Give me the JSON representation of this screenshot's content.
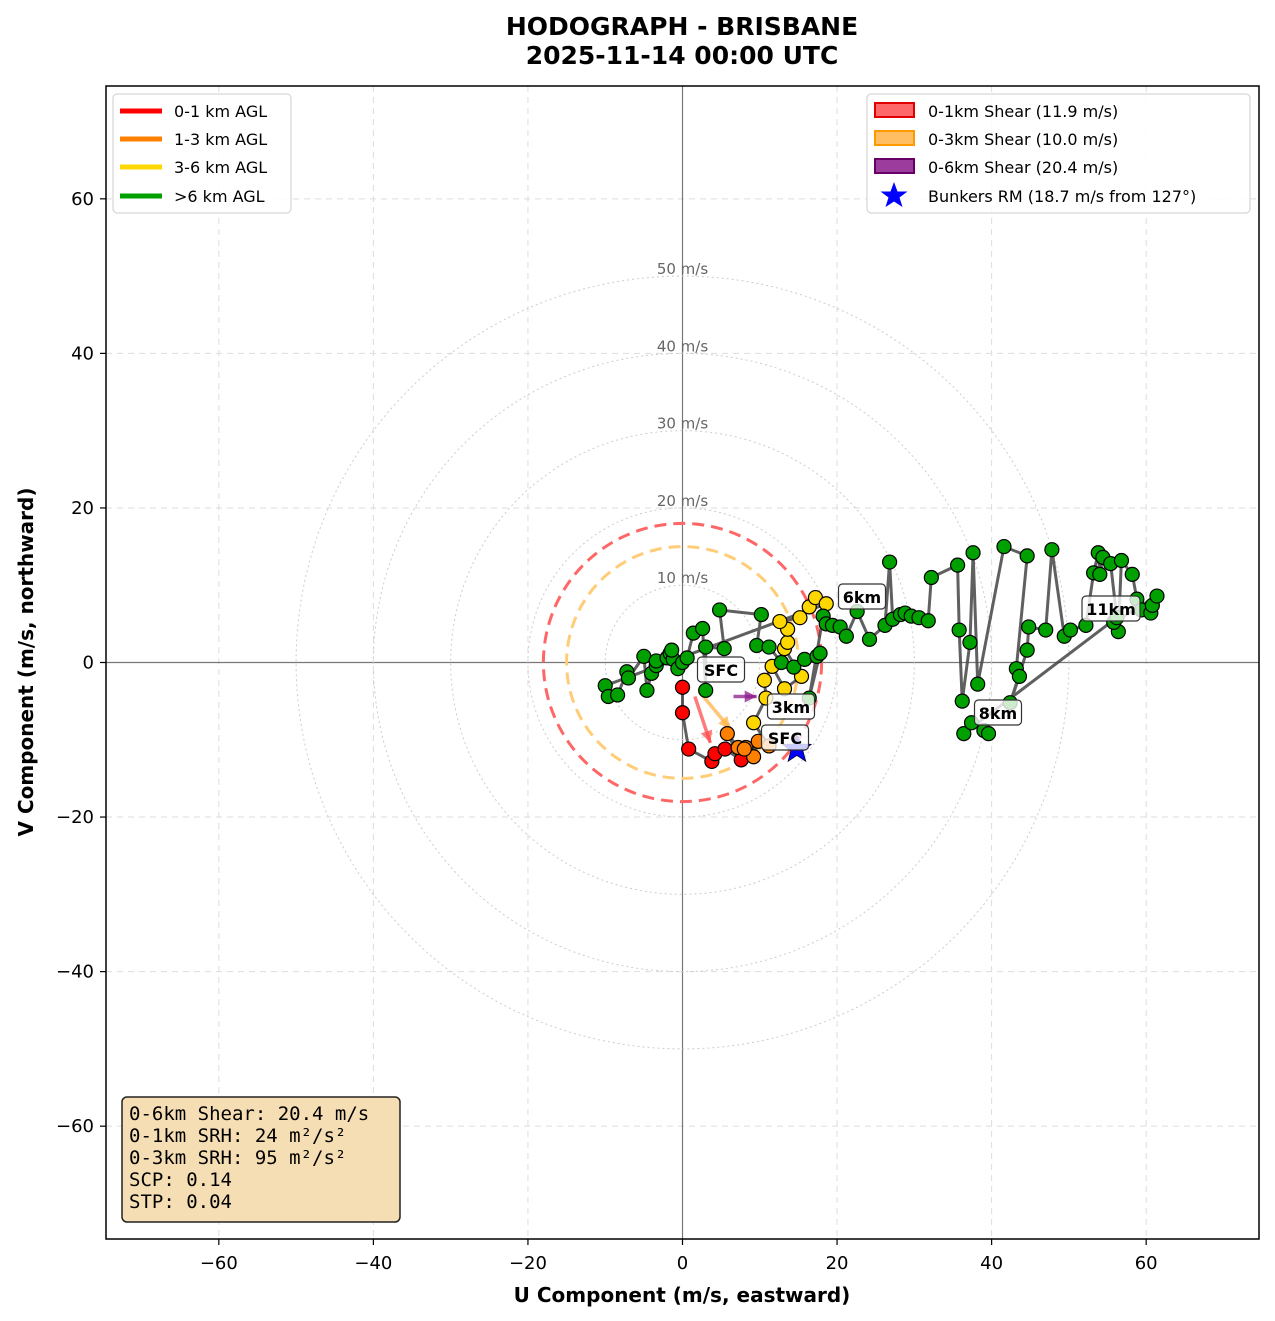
{
  "chart_data": {
    "type": "scatter",
    "title": "HODOGRAPH - BRISBANE",
    "subtitle": "2025-11-14 00:00 UTC",
    "xlabel": "U Component (m/s, eastward)",
    "ylabel": "V Component (m/s, northward)",
    "xlim": [
      -74.6,
      74.6
    ],
    "ylim": [
      -74.6,
      74.6
    ],
    "xticks": [
      -60,
      -40,
      -20,
      0,
      20,
      40,
      60
    ],
    "yticks": [
      -60,
      -40,
      -20,
      0,
      20,
      40,
      60
    ],
    "grid": true,
    "rings": [
      10,
      20,
      30,
      40,
      50
    ],
    "ring_labels": [
      "10 m/s",
      "20 m/s",
      "30 m/s",
      "40 m/s",
      "50 m/s"
    ],
    "shear_circles": [
      {
        "radius": 18,
        "color": "#ff6666"
      },
      {
        "radius": 15,
        "color": "#ffcc77"
      }
    ],
    "colors": {
      "layer_0_1": "#ff0000",
      "layer_1_3": "#ff8000",
      "layer_3_6": "#ffd700",
      "layer_above_6": "#00a000",
      "path": "#444444",
      "bunkers": "#0000ff",
      "shear_0_1": "#ff4d4d",
      "shear_0_3": "#ffb347",
      "shear_0_6": "#8b1a8b"
    },
    "series": [
      {
        "name": "0-1 km AGL",
        "color": "#ff0000",
        "points": [
          [
            0,
            -3.2
          ],
          [
            0,
            -6.5
          ],
          [
            0.8,
            -11.2
          ],
          [
            3.8,
            -12.8
          ],
          [
            4.2,
            -11.8
          ],
          [
            5.5,
            -11.2
          ],
          [
            7.6,
            -12.6
          ]
        ]
      },
      {
        "name": "1-3 km AGL",
        "color": "#ff8000",
        "points": [
          [
            5.8,
            -9.2
          ],
          [
            7.2,
            -11
          ],
          [
            8.2,
            -11
          ],
          [
            9.2,
            -12.2
          ],
          [
            9.8,
            -10.2
          ],
          [
            8,
            -11.2
          ],
          [
            11.2,
            -10.8
          ]
        ]
      },
      {
        "name": "3-6 km AGL",
        "color": "#ffd700",
        "points": [
          [
            9.2,
            -7.8
          ],
          [
            10.8,
            -4.6
          ],
          [
            10.6,
            -2.3
          ],
          [
            11.6,
            -0.5
          ],
          [
            13.2,
            -3.4
          ],
          [
            15.4,
            -1.8
          ],
          [
            13.2,
            1.8
          ],
          [
            13.6,
            2.6
          ],
          [
            13.6,
            4.3
          ],
          [
            12.6,
            5.3
          ],
          [
            15.2,
            5.8
          ],
          [
            16.4,
            7.2
          ],
          [
            17.2,
            8.4
          ],
          [
            18.6,
            7.6
          ]
        ]
      },
      {
        "name": ">6 km AGL",
        "color": "#00a000",
        "points": [
          [
            -10,
            -3
          ],
          [
            -9.6,
            -4.4
          ],
          [
            -8.4,
            -4.2
          ],
          [
            -7.2,
            -1.2
          ],
          [
            -7,
            -2
          ],
          [
            -5,
            0.8
          ],
          [
            -4.6,
            -3.6
          ],
          [
            -4,
            -1.4
          ],
          [
            -3.4,
            -0.4
          ],
          [
            -3.4,
            0.2
          ],
          [
            -2,
            0.6
          ],
          [
            -1.6,
            1.2
          ],
          [
            -1.2,
            0.4
          ],
          [
            -1.4,
            1.6
          ],
          [
            -0.6,
            -0.8
          ],
          [
            0,
            0
          ],
          [
            0.6,
            0.6
          ],
          [
            1.4,
            3.8
          ],
          [
            2.6,
            4.4
          ],
          [
            3,
            -3.6
          ],
          [
            3,
            2
          ],
          [
            5.4,
            1.8
          ],
          [
            4.8,
            6.8
          ],
          [
            10.2,
            6.2
          ],
          [
            9.6,
            2.2
          ],
          [
            11.2,
            2
          ],
          [
            12.8,
            0
          ],
          [
            14.4,
            -0.6
          ],
          [
            15.8,
            0.4
          ],
          [
            17.4,
            0.8
          ],
          [
            17.8,
            1.2
          ],
          [
            16.4,
            -4.6
          ],
          [
            18.2,
            6
          ],
          [
            18.6,
            5
          ],
          [
            19.4,
            4.8
          ],
          [
            20.4,
            4.6
          ],
          [
            21.2,
            3.4
          ],
          [
            22.6,
            6.6
          ],
          [
            24.2,
            3
          ],
          [
            26.2,
            4.8
          ],
          [
            26.8,
            13
          ],
          [
            27.2,
            5.6
          ],
          [
            28.2,
            6.2
          ],
          [
            28.8,
            6.4
          ],
          [
            29.6,
            6
          ],
          [
            30.6,
            5.8
          ],
          [
            31.8,
            5.4
          ],
          [
            32.2,
            11
          ],
          [
            35.6,
            12.6
          ],
          [
            35.8,
            4.2
          ],
          [
            36.2,
            -5
          ],
          [
            37.2,
            2.6
          ],
          [
            37.6,
            14.2
          ],
          [
            38.2,
            -2.8
          ],
          [
            41.6,
            15
          ],
          [
            44.6,
            13.8
          ],
          [
            43.2,
            -0.8
          ],
          [
            43.6,
            -1.8
          ],
          [
            42.4,
            -5.2
          ],
          [
            44.6,
            1.6
          ],
          [
            44.8,
            4.6
          ],
          [
            47,
            4.2
          ],
          [
            47.8,
            14.6
          ],
          [
            49.4,
            3.4
          ],
          [
            50.2,
            4.2
          ],
          [
            52.2,
            4.8
          ],
          [
            53.2,
            11.6
          ],
          [
            53.8,
            14.2
          ],
          [
            54,
            11.4
          ],
          [
            54.4,
            13.6
          ],
          [
            55.4,
            12.8
          ],
          [
            56.4,
            4
          ],
          [
            56.8,
            13.2
          ],
          [
            58.2,
            11.4
          ],
          [
            58.8,
            8.2
          ],
          [
            59.4,
            6.8
          ],
          [
            60.6,
            6.4
          ],
          [
            60.8,
            7.4
          ],
          [
            61.4,
            8.6
          ],
          [
            55.8,
            5.2
          ],
          [
            56.2,
            5.8
          ],
          [
            36.4,
            -9.2
          ],
          [
            37.4,
            -7.8
          ],
          [
            39,
            -8.8
          ],
          [
            39.6,
            -9.2
          ]
        ]
      }
    ],
    "labels": [
      "SFC",
      "SFC",
      "3km",
      "6km",
      "8km",
      "11km"
    ],
    "arrows": [
      {
        "name": "0-1km shear",
        "from": [
          1.6,
          -4.4
        ],
        "to": [
          3.6,
          -10.4
        ]
      },
      {
        "name": "0-3km shear",
        "from": [
          2.2,
          -3.8
        ],
        "to": [
          6.2,
          -8.6
        ]
      },
      {
        "name": "0-6km shear",
        "from": [
          6.6,
          -4.4
        ],
        "to": [
          9.6,
          -4.4
        ]
      }
    ],
    "bunkers": {
      "u": 14.8,
      "v": -11.2
    },
    "legend_left": [
      "0-1 km AGL",
      "1-3 km AGL",
      "3-6 km AGL",
      ">6 km AGL"
    ],
    "legend_right": [
      "0-1km Shear (11.9 m/s)",
      "0-3km Shear (10.0 m/s)",
      "0-6km Shear (20.4 m/s)",
      "Bunkers RM (18.7 m/s from 127°)"
    ],
    "stats": [
      "0-6km Shear: 20.4 m/s",
      "0-1km SRH: 24 m²/s²",
      "0-3km SRH: 95 m²/s²",
      "SCP: 0.14",
      "STP: 0.04"
    ]
  }
}
